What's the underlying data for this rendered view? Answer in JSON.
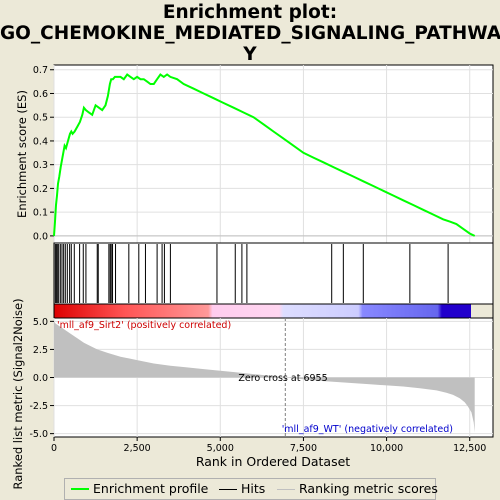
{
  "title": "Enrichment plot:\nGO_CHEMOKINE_MEDIATED_SIGNALING_PATHWAY",
  "title_lines": [
    "Enrichment plot:",
    "GO_CHEMOKINE_MEDIATED_SIGNALING_PATHWA",
    "Y"
  ],
  "legend": {
    "items": [
      {
        "label": "Enrichment profile",
        "color": "#00ff00"
      },
      {
        "label": "Hits",
        "color": "#000000"
      },
      {
        "label": "Ranking metric scores",
        "color": "#c0c0c0"
      }
    ]
  },
  "colors": {
    "background": "#ece9d8",
    "plot_bg": "#ffffff",
    "es_line": "#00ff00",
    "metric_fill": "#c0c0c0",
    "pos_label": "#cc0000",
    "neg_label": "#0000cc"
  },
  "chart_data": [
    {
      "type": "line",
      "name": "enrichment",
      "ylabel": "Enrichment score (ES)",
      "ylim": [
        -0.03,
        0.72
      ],
      "yticks": [
        0.0,
        0.1,
        0.2,
        0.3,
        0.4,
        0.5,
        0.6,
        0.7
      ],
      "ytick_labels": [
        "0.0",
        "0.1",
        "0.2",
        "0.3",
        "0.4",
        "0.5",
        "0.6",
        "0.7"
      ],
      "xlim": [
        0,
        13200
      ],
      "grid": true,
      "series": [
        {
          "x": [
            0,
            30,
            60,
            90,
            120,
            160,
            200,
            240,
            280,
            320,
            360,
            420,
            480,
            520,
            560,
            620,
            700,
            780,
            850,
            900,
            960,
            1050,
            1150,
            1250,
            1350,
            1450,
            1550,
            1620,
            1680,
            1720,
            1770,
            1830,
            1900,
            2000,
            2100,
            2200,
            2300,
            2400,
            2500,
            2600,
            2700,
            2800,
            2900,
            3000,
            3100,
            3200,
            3300,
            3400,
            3500,
            3700,
            3900,
            4200,
            4500,
            4800,
            5100,
            5400,
            5700,
            6000,
            6300,
            6600,
            6900,
            7200,
            7500,
            7800,
            8100,
            8400,
            8700,
            9000,
            9300,
            9600,
            9900,
            10200,
            10500,
            10800,
            11100,
            11400,
            11700,
            11900,
            12100,
            12300,
            12500,
            12650
          ],
          "values": [
            0.0,
            0.06,
            0.13,
            0.17,
            0.22,
            0.25,
            0.29,
            0.32,
            0.35,
            0.38,
            0.37,
            0.4,
            0.43,
            0.44,
            0.43,
            0.44,
            0.46,
            0.48,
            0.51,
            0.54,
            0.53,
            0.52,
            0.51,
            0.55,
            0.54,
            0.53,
            0.55,
            0.59,
            0.64,
            0.66,
            0.66,
            0.67,
            0.67,
            0.67,
            0.66,
            0.68,
            0.67,
            0.66,
            0.67,
            0.66,
            0.66,
            0.65,
            0.64,
            0.64,
            0.66,
            0.68,
            0.67,
            0.68,
            0.67,
            0.66,
            0.64,
            0.62,
            0.6,
            0.58,
            0.56,
            0.54,
            0.52,
            0.5,
            0.47,
            0.44,
            0.41,
            0.38,
            0.35,
            0.33,
            0.31,
            0.29,
            0.27,
            0.25,
            0.23,
            0.21,
            0.19,
            0.17,
            0.15,
            0.13,
            0.11,
            0.09,
            0.07,
            0.06,
            0.05,
            0.03,
            0.01,
            0.0
          ]
        }
      ]
    },
    {
      "type": "hits",
      "name": "hit positions",
      "x": [
        40,
        70,
        100,
        140,
        190,
        240,
        290,
        340,
        400,
        470,
        520,
        610,
        770,
        880,
        960,
        1300,
        1330,
        1650,
        1690,
        1720,
        1760,
        1850,
        2250,
        2550,
        2750,
        3100,
        3250,
        3320,
        3500,
        4900,
        5450,
        5650,
        5800,
        8350,
        8700,
        9300,
        10700,
        11850
      ]
    },
    {
      "type": "area",
      "name": "ranking metric",
      "ylabel": "Ranked list metric (Signal2Noise)",
      "xlabel": "Rank in Ordered Dataset",
      "ylim": [
        -5.3,
        5.3
      ],
      "yticks": [
        -5.0,
        -2.5,
        0.0,
        2.5,
        5.0
      ],
      "ytick_labels": [
        "-5.0",
        "-2.5",
        "0.0",
        "2.5",
        "5.0"
      ],
      "xticks": [
        0,
        2500,
        5000,
        7500,
        10000,
        12500
      ],
      "xtick_labels": [
        "0",
        "2,500",
        "5,000",
        "7,500",
        "10,000",
        "12,500"
      ],
      "xlim": [
        0,
        13200
      ],
      "zero_cross": 6955,
      "zero_cross_label": "Zero cross at 6955",
      "pos_label": "'mll_af9_Sirt2' (positively correlated)",
      "neg_label": "'mll_af9_WT' (negatively correlated)",
      "series": [
        {
          "x": [
            0,
            50,
            150,
            300,
            500,
            700,
            900,
            1100,
            1300,
            1600,
            2000,
            2500,
            3000,
            3500,
            4000,
            4500,
            5000,
            5500,
            6000,
            6500,
            6955,
            7500,
            8000,
            8500,
            9000,
            9500,
            10000,
            10500,
            11000,
            11500,
            11800,
            12000,
            12200,
            12350,
            12450,
            12550,
            12620,
            12650
          ],
          "values": [
            5.0,
            4.8,
            4.6,
            4.3,
            3.9,
            3.5,
            3.1,
            2.8,
            2.5,
            2.2,
            1.85,
            1.55,
            1.25,
            1.05,
            0.9,
            0.75,
            0.6,
            0.45,
            0.3,
            0.15,
            0.0,
            -0.15,
            -0.3,
            -0.4,
            -0.5,
            -0.6,
            -0.7,
            -0.8,
            -0.95,
            -1.15,
            -1.35,
            -1.55,
            -1.85,
            -2.2,
            -2.6,
            -3.1,
            -4.0,
            -4.9
          ]
        }
      ]
    }
  ]
}
